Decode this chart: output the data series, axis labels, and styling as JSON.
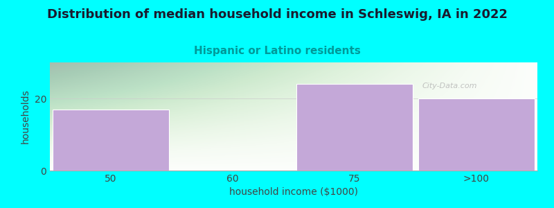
{
  "title": "Distribution of median household income in Schleswig, IA in 2022",
  "subtitle": "Hispanic or Latino residents",
  "subtitle_color": "#009999",
  "xlabel": "household income ($1000)",
  "ylabel": "households",
  "categories": [
    "50",
    "60",
    "75",
    ">100"
  ],
  "values": [
    17,
    0,
    24,
    20
  ],
  "bar_color": "#C4A8D8",
  "bar_edge_color": "#C4A8D8",
  "background_outer": "#00FFFF",
  "ylim": [
    0,
    30
  ],
  "yticks": [
    0,
    20
  ],
  "watermark": "City-Data.com",
  "title_fontsize": 13,
  "subtitle_fontsize": 11,
  "label_fontsize": 10,
  "tick_fontsize": 10,
  "title_color": "#1a1a2e",
  "axis_text_color": "#444444"
}
